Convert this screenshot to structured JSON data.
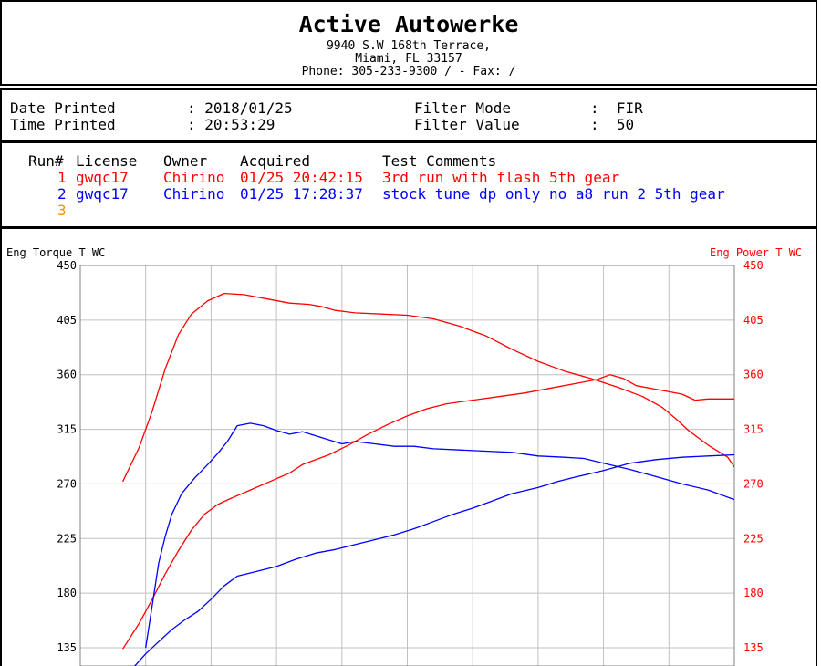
{
  "header": {
    "shop_name": "Active Autowerke",
    "address_line1": "9940 S.W 168th Terrace,",
    "address_line2": "Miami,  FL  33157",
    "phone_line": "Phone: 305-233-9300 /  - Fax:  /"
  },
  "print_info": {
    "date_label": "Date Printed",
    "date_value": ": 2018/01/25",
    "time_label": "Time Printed",
    "time_value": ": 20:53:29",
    "filter_mode_label": "Filter Mode",
    "filter_mode_value": ":  FIR",
    "filter_value_label": "Filter Value",
    "filter_value_value": ":  50"
  },
  "runs": {
    "headers": {
      "run": "Run#",
      "license": "License",
      "owner": "Owner",
      "acquired": "Acquired",
      "comments": "Test Comments"
    },
    "rows": [
      {
        "run": "1",
        "license": "gwqc17",
        "owner": "Chirino",
        "acquired": "01/25 20:42:15",
        "comments": "3rd run with flash 5th gear",
        "color": "#ff0000"
      },
      {
        "run": "2",
        "license": "gwqc17",
        "owner": "Chirino",
        "acquired": "01/25 17:28:37",
        "comments": "stock tune dp only no a8 run 2 5th gear",
        "color": "#0000ff"
      },
      {
        "run": "3",
        "license": "",
        "owner": "",
        "acquired": "",
        "comments": "",
        "color": "#ff8c00"
      }
    ]
  },
  "chart_data": {
    "type": "line",
    "left_axis_label": "Eng Torque T WC",
    "right_axis_label": "Eng Power T WC",
    "y_ticks": [
      "450",
      "405",
      "360",
      "315",
      "270",
      "225",
      "180",
      "135"
    ],
    "ylim": [
      135,
      450
    ],
    "x_range_visible": [
      0,
      10
    ],
    "grid": true,
    "colors": {
      "run1": "#ff0000",
      "run2": "#0000ff",
      "grid": "#c0c0c0",
      "right_axis": "#ff0000"
    },
    "series": [
      {
        "run": "1",
        "measure": "torque",
        "color": "#ff0000",
        "points": [
          [
            0.65,
            272
          ],
          [
            0.9,
            300
          ],
          [
            1.1,
            330
          ],
          [
            1.3,
            365
          ],
          [
            1.5,
            393
          ],
          [
            1.7,
            410
          ],
          [
            1.95,
            421
          ],
          [
            2.2,
            427
          ],
          [
            2.5,
            426
          ],
          [
            2.9,
            422
          ],
          [
            3.2,
            419
          ],
          [
            3.5,
            418
          ],
          [
            3.7,
            416
          ],
          [
            3.9,
            413
          ],
          [
            4.2,
            411
          ],
          [
            4.6,
            410
          ],
          [
            5.0,
            409
          ],
          [
            5.4,
            406
          ],
          [
            5.8,
            400
          ],
          [
            6.2,
            392
          ],
          [
            6.6,
            381
          ],
          [
            7.0,
            371
          ],
          [
            7.4,
            363
          ],
          [
            7.8,
            357
          ],
          [
            8.2,
            350
          ],
          [
            8.6,
            342
          ],
          [
            8.9,
            333
          ],
          [
            9.1,
            324
          ],
          [
            9.3,
            314
          ],
          [
            9.6,
            302
          ],
          [
            9.9,
            292
          ],
          [
            10.0,
            284
          ]
        ]
      },
      {
        "run": "1",
        "measure": "power",
        "color": "#ff0000",
        "points": [
          [
            0.65,
            134
          ],
          [
            0.9,
            155
          ],
          [
            1.1,
            175
          ],
          [
            1.3,
            196
          ],
          [
            1.5,
            215
          ],
          [
            1.7,
            232
          ],
          [
            1.9,
            245
          ],
          [
            2.1,
            253
          ],
          [
            2.3,
            258
          ],
          [
            2.6,
            265
          ],
          [
            2.9,
            272
          ],
          [
            3.2,
            279
          ],
          [
            3.4,
            286
          ],
          [
            3.8,
            294
          ],
          [
            4.1,
            302
          ],
          [
            4.4,
            311
          ],
          [
            4.7,
            319
          ],
          [
            5.0,
            326
          ],
          [
            5.3,
            332
          ],
          [
            5.6,
            336
          ],
          [
            6.0,
            339
          ],
          [
            6.4,
            342
          ],
          [
            6.8,
            345
          ],
          [
            7.2,
            349
          ],
          [
            7.6,
            353
          ],
          [
            7.9,
            356
          ],
          [
            8.1,
            360
          ],
          [
            8.3,
            357
          ],
          [
            8.5,
            351
          ],
          [
            8.9,
            347
          ],
          [
            9.2,
            344
          ],
          [
            9.4,
            339
          ],
          [
            9.6,
            340
          ],
          [
            9.9,
            340
          ],
          [
            10.0,
            340
          ]
        ]
      },
      {
        "run": "2",
        "measure": "torque",
        "color": "#0000ff",
        "points": [
          [
            1.0,
            135
          ],
          [
            1.1,
            170
          ],
          [
            1.2,
            205
          ],
          [
            1.3,
            227
          ],
          [
            1.4,
            245
          ],
          [
            1.55,
            262
          ],
          [
            1.75,
            275
          ],
          [
            1.95,
            286
          ],
          [
            2.1,
            295
          ],
          [
            2.25,
            305
          ],
          [
            2.4,
            318
          ],
          [
            2.6,
            320
          ],
          [
            2.8,
            318
          ],
          [
            3.0,
            314
          ],
          [
            3.2,
            311
          ],
          [
            3.4,
            313
          ],
          [
            3.7,
            308
          ],
          [
            4.0,
            303
          ],
          [
            4.2,
            305
          ],
          [
            4.5,
            303
          ],
          [
            4.8,
            301
          ],
          [
            5.1,
            301
          ],
          [
            5.4,
            299
          ],
          [
            5.8,
            298
          ],
          [
            6.2,
            297
          ],
          [
            6.6,
            296
          ],
          [
            7.0,
            293
          ],
          [
            7.4,
            292
          ],
          [
            7.7,
            291
          ],
          [
            8.0,
            287
          ],
          [
            8.4,
            282
          ],
          [
            8.8,
            276
          ],
          [
            9.2,
            270
          ],
          [
            9.6,
            265
          ],
          [
            10.0,
            257
          ]
        ]
      },
      {
        "run": "2",
        "measure": "power",
        "color": "#0000ff",
        "points": [
          [
            0.8,
            118
          ],
          [
            1.0,
            130
          ],
          [
            1.2,
            140
          ],
          [
            1.4,
            150
          ],
          [
            1.6,
            158
          ],
          [
            1.8,
            165
          ],
          [
            2.0,
            175
          ],
          [
            2.2,
            186
          ],
          [
            2.4,
            194
          ],
          [
            2.7,
            198
          ],
          [
            3.0,
            202
          ],
          [
            3.3,
            208
          ],
          [
            3.6,
            213
          ],
          [
            3.9,
            216
          ],
          [
            4.2,
            220
          ],
          [
            4.5,
            224
          ],
          [
            4.8,
            228
          ],
          [
            5.1,
            233
          ],
          [
            5.4,
            239
          ],
          [
            5.7,
            245
          ],
          [
            6.0,
            250
          ],
          [
            6.3,
            256
          ],
          [
            6.6,
            262
          ],
          [
            7.0,
            267
          ],
          [
            7.3,
            272
          ],
          [
            7.6,
            276
          ],
          [
            8.0,
            281
          ],
          [
            8.4,
            287
          ],
          [
            8.8,
            290
          ],
          [
            9.2,
            292
          ],
          [
            9.6,
            293
          ],
          [
            10.0,
            294
          ]
        ]
      }
    ]
  }
}
